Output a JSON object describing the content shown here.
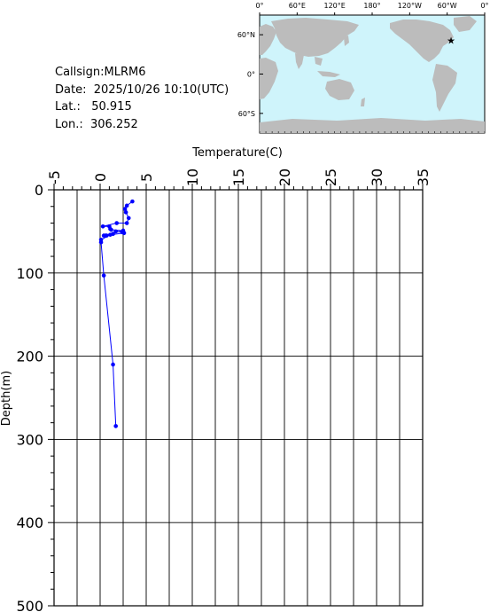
{
  "station": {
    "callsign_label": "Callsign:",
    "callsign": "MLRM6",
    "date_label": "Date:",
    "date": "2025/10/26 10:10(UTC)",
    "lat_label": "Lat.:",
    "lat": "50.915",
    "lon_label": "Lon.:",
    "lon": "306.252"
  },
  "map": {
    "lon_labels": [
      "0°",
      "60°E",
      "120°E",
      "180°",
      "120°W",
      "60°W",
      "0°"
    ],
    "lat_labels": [
      "60°N",
      "0°",
      "60°S"
    ],
    "ocean_color": "#cff4fb",
    "land_color": "#bcbcbc",
    "marker_color": "#ff0000",
    "marker_icon": "star-icon"
  },
  "chart_data": {
    "type": "line",
    "title": "",
    "xlabel": "Temperature(C)",
    "ylabel": "Depth(m)",
    "xlim": [
      -5,
      35
    ],
    "ylim": [
      0,
      500
    ],
    "y_inverted": true,
    "x_ticks": [
      "-5",
      "0",
      "5",
      "10",
      "15",
      "20",
      "25",
      "30",
      "35"
    ],
    "y_ticks": [
      "0",
      "100",
      "200",
      "300",
      "400",
      "500"
    ],
    "grid": true,
    "series": [
      {
        "color": "#0000ff",
        "x": [
          3.5,
          2.9,
          2.7,
          2.8,
          3.1,
          2.9,
          1.8,
          0.3,
          1.0,
          1.1,
          1.2,
          2.5,
          0.4,
          0.6,
          0.7,
          1.4,
          1.7,
          2.4,
          2.6,
          1.1,
          0.1,
          0.1,
          0.4,
          1.4,
          1.7
        ],
        "y": [
          14,
          19,
          23,
          27,
          34,
          40,
          40,
          44,
          44,
          47,
          48,
          49,
          55,
          55,
          55,
          53,
          50,
          51,
          52,
          54,
          60,
          63,
          103,
          210,
          284
        ]
      }
    ]
  }
}
